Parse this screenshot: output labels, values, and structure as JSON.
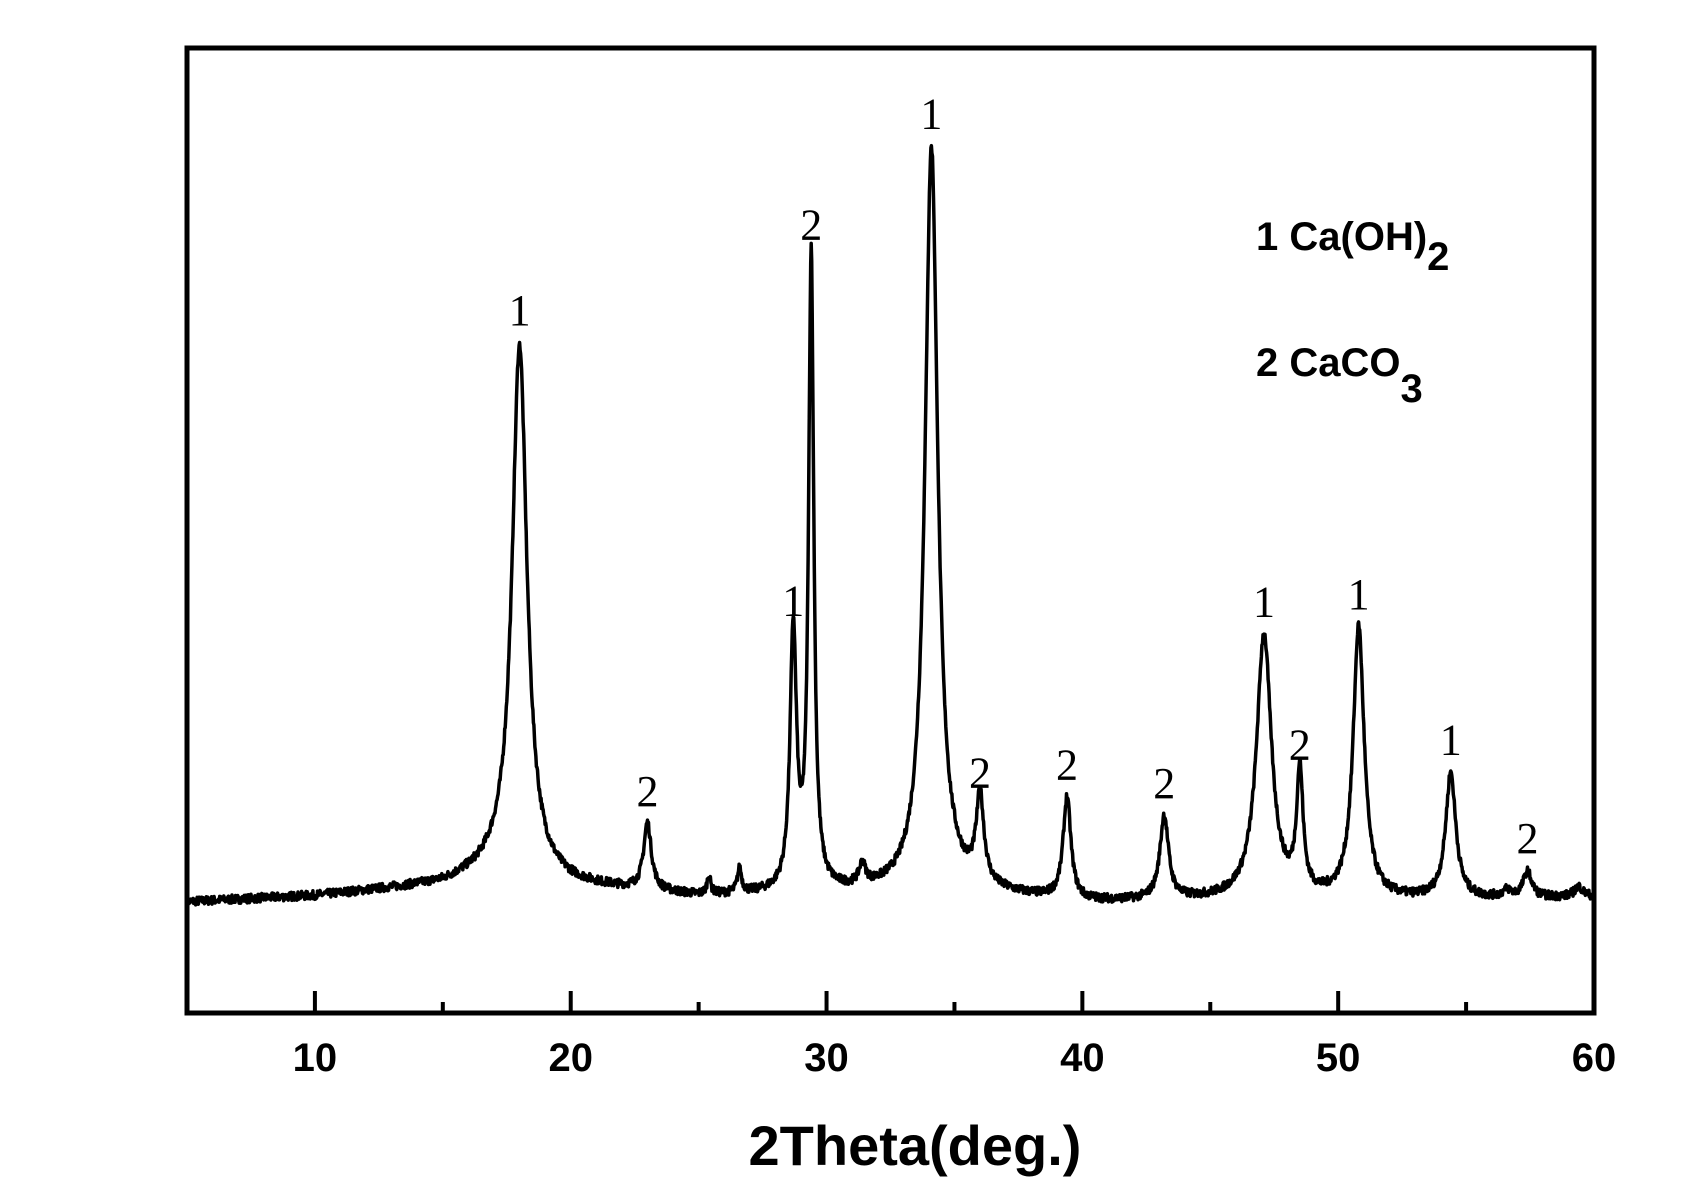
{
  "chart_data": {
    "type": "line",
    "xlabel": "2Theta(deg.)",
    "ylabel": "",
    "xlim": [
      5,
      60
    ],
    "ylim": [
      0,
      100
    ],
    "x_ticks": [
      10,
      20,
      30,
      40,
      50,
      60
    ],
    "x_minor_ticks": [
      15,
      25,
      35,
      45,
      55
    ],
    "y_ticks_shown": false,
    "grid": false,
    "legend_position": "top-right",
    "legend": [
      {
        "number": "1",
        "compound": "Ca(OH)",
        "subscript": "2"
      },
      {
        "number": "2",
        "compound": "CaCO",
        "subscript": "3"
      }
    ],
    "baseline": [
      [
        5,
        11.5
      ],
      [
        10,
        12.1
      ],
      [
        15,
        13.3
      ],
      [
        17,
        14.6
      ],
      [
        20,
        13.2
      ],
      [
        25,
        12.0
      ],
      [
        30,
        12.3
      ],
      [
        35,
        12.5
      ],
      [
        40,
        11.4
      ],
      [
        45,
        11.6
      ],
      [
        50,
        11.6
      ],
      [
        55,
        11.7
      ],
      [
        60,
        12.0
      ]
    ],
    "peaks": [
      {
        "x": 18.0,
        "y": 69.2,
        "label": "1",
        "width": 0.35
      },
      {
        "x": 23.0,
        "y": 19.4,
        "label": "2",
        "width": 0.18
      },
      {
        "x": 25.4,
        "y": 14.0,
        "label": "",
        "width": 0.08
      },
      {
        "x": 26.6,
        "y": 14.6,
        "label": "",
        "width": 0.1
      },
      {
        "x": 28.7,
        "y": 39.1,
        "label": "1",
        "width": 0.15
      },
      {
        "x": 29.4,
        "y": 78.1,
        "label": "2",
        "width": 0.12
      },
      {
        "x": 31.4,
        "y": 14.5,
        "label": "",
        "width": 0.15
      },
      {
        "x": 34.1,
        "y": 89.6,
        "label": "1",
        "width": 0.3
      },
      {
        "x": 36.0,
        "y": 21.3,
        "label": "2",
        "width": 0.18
      },
      {
        "x": 39.4,
        "y": 22.1,
        "label": "2",
        "width": 0.18
      },
      {
        "x": 43.2,
        "y": 20.2,
        "label": "2",
        "width": 0.2
      },
      {
        "x": 47.1,
        "y": 39.0,
        "label": "1",
        "width": 0.35
      },
      {
        "x": 48.5,
        "y": 24.2,
        "label": "2",
        "width": 0.15
      },
      {
        "x": 50.8,
        "y": 39.8,
        "label": "1",
        "width": 0.26
      },
      {
        "x": 54.4,
        "y": 24.7,
        "label": "1",
        "width": 0.24
      },
      {
        "x": 56.6,
        "y": 12.5,
        "label": "",
        "width": 0.2
      },
      {
        "x": 57.4,
        "y": 14.5,
        "label": "2",
        "width": 0.2
      },
      {
        "x": 59.4,
        "y": 13.0,
        "label": "",
        "width": 0.2
      }
    ]
  }
}
